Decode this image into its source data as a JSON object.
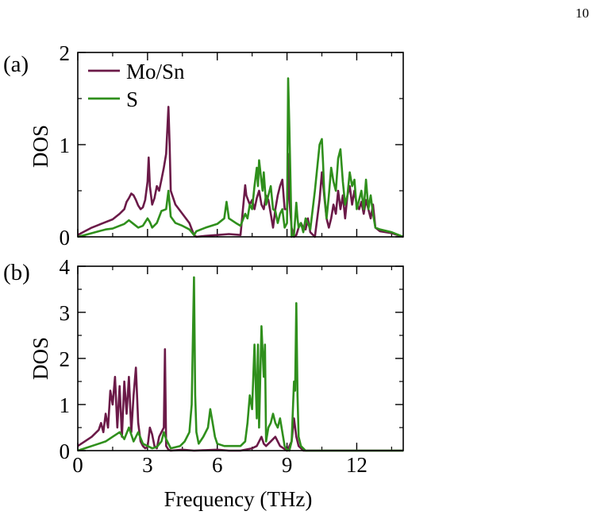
{
  "page_number": "10",
  "chart_data": [
    {
      "type": "line",
      "panel_label": "(a)",
      "ylabel": "DOS",
      "xlabel": "",
      "xlim": [
        0,
        14
      ],
      "ylim": [
        0,
        2
      ],
      "xticks": [
        0,
        3,
        6,
        9,
        12
      ],
      "xtick_labels_shown": false,
      "yticks": [
        0,
        1,
        2
      ],
      "ytick_labels": [
        "0",
        "1",
        "2"
      ],
      "legend": "top-left",
      "series": [
        {
          "name": "Mo/Sn",
          "color": "#6b1a48",
          "x": [
            0.0,
            0.3,
            0.6,
            0.9,
            1.2,
            1.5,
            1.8,
            2.0,
            2.1,
            2.2,
            2.3,
            2.4,
            2.5,
            2.6,
            2.7,
            2.8,
            2.9,
            3.0,
            3.05,
            3.1,
            3.2,
            3.3,
            3.4,
            3.5,
            3.6,
            3.7,
            3.8,
            3.9,
            3.95,
            4.0,
            4.2,
            4.5,
            4.8,
            5.0,
            5.1,
            5.5,
            6.0,
            6.5,
            7.0,
            7.2,
            7.25,
            7.4,
            7.5,
            7.6,
            7.7,
            7.8,
            7.9,
            8.0,
            8.1,
            8.2,
            8.3,
            8.4,
            8.5,
            8.6,
            8.7,
            8.8,
            8.9,
            9.0,
            9.05,
            9.1,
            9.2,
            9.3,
            9.4,
            9.5,
            9.6,
            9.7,
            9.8,
            9.9,
            10.0,
            10.2,
            10.4,
            10.5,
            10.6,
            10.7,
            10.8,
            10.9,
            11.0,
            11.1,
            11.2,
            11.3,
            11.4,
            11.5,
            11.6,
            11.7,
            11.8,
            11.9,
            12.0,
            12.1,
            12.2,
            12.3,
            12.4,
            12.5,
            12.6,
            12.7,
            12.8,
            13.0,
            13.5,
            14.0
          ],
          "y": [
            0.02,
            0.06,
            0.1,
            0.13,
            0.16,
            0.19,
            0.25,
            0.3,
            0.38,
            0.42,
            0.47,
            0.45,
            0.4,
            0.34,
            0.3,
            0.32,
            0.4,
            0.6,
            0.86,
            0.55,
            0.35,
            0.42,
            0.55,
            0.5,
            0.62,
            0.75,
            0.9,
            1.41,
            1.0,
            0.5,
            0.35,
            0.25,
            0.15,
            0.02,
            0.0,
            0.01,
            0.02,
            0.03,
            0.02,
            0.56,
            0.45,
            0.35,
            0.4,
            0.3,
            0.42,
            0.5,
            0.35,
            0.3,
            0.45,
            0.4,
            0.25,
            0.1,
            0.3,
            0.45,
            0.55,
            0.62,
            0.3,
            0.3,
            0.9,
            0.4,
            0.1,
            0.0,
            0.02,
            0.1,
            0.15,
            0.1,
            0.08,
            0.2,
            0.05,
            0.0,
            0.4,
            0.7,
            0.45,
            0.2,
            0.1,
            0.2,
            0.35,
            0.25,
            0.5,
            0.3,
            0.45,
            0.2,
            0.45,
            0.55,
            0.35,
            0.5,
            0.35,
            0.3,
            0.38,
            0.25,
            0.4,
            0.3,
            0.2,
            0.35,
            0.1,
            0.06,
            0.04,
            0.0
          ]
        },
        {
          "name": "S",
          "color": "#2f8f1c",
          "x": [
            0.0,
            0.3,
            0.6,
            0.9,
            1.2,
            1.5,
            1.8,
            2.0,
            2.2,
            2.4,
            2.6,
            2.8,
            3.0,
            3.1,
            3.2,
            3.4,
            3.6,
            3.8,
            3.9,
            4.0,
            4.2,
            4.5,
            4.8,
            5.0,
            5.1,
            5.5,
            6.0,
            6.3,
            6.4,
            6.5,
            6.8,
            7.0,
            7.2,
            7.3,
            7.4,
            7.5,
            7.6,
            7.7,
            7.75,
            7.8,
            7.9,
            7.95,
            8.0,
            8.1,
            8.2,
            8.3,
            8.4,
            8.5,
            8.6,
            8.7,
            8.8,
            8.9,
            9.0,
            9.05,
            9.1,
            9.15,
            9.2,
            9.3,
            9.4,
            9.45,
            9.5,
            9.6,
            9.7,
            9.8,
            9.9,
            10.0,
            10.2,
            10.4,
            10.5,
            10.55,
            10.6,
            10.7,
            10.8,
            10.9,
            11.0,
            11.1,
            11.2,
            11.3,
            11.4,
            11.5,
            11.6,
            11.7,
            11.8,
            11.9,
            12.0,
            12.1,
            12.2,
            12.3,
            12.4,
            12.5,
            12.6,
            12.7,
            12.8,
            13.0,
            13.5,
            14.0
          ],
          "y": [
            0.0,
            0.02,
            0.04,
            0.06,
            0.08,
            0.09,
            0.12,
            0.14,
            0.18,
            0.14,
            0.1,
            0.12,
            0.2,
            0.16,
            0.1,
            0.15,
            0.28,
            0.3,
            0.5,
            0.22,
            0.15,
            0.12,
            0.08,
            0.02,
            0.06,
            0.1,
            0.14,
            0.2,
            0.38,
            0.2,
            0.15,
            0.12,
            0.25,
            0.2,
            0.35,
            0.3,
            0.55,
            0.75,
            0.55,
            0.83,
            0.6,
            0.5,
            0.7,
            0.35,
            0.45,
            0.55,
            0.3,
            0.28,
            0.15,
            0.25,
            0.3,
            0.1,
            0.15,
            1.72,
            1.2,
            0.6,
            0.0,
            0.02,
            0.37,
            0.2,
            0.1,
            0.15,
            0.05,
            0.2,
            0.15,
            0.08,
            0.5,
            1.0,
            1.06,
            0.8,
            0.5,
            0.2,
            0.45,
            0.75,
            0.6,
            0.5,
            0.85,
            0.95,
            0.6,
            0.35,
            0.45,
            0.7,
            0.55,
            0.62,
            0.3,
            0.4,
            0.5,
            0.3,
            0.62,
            0.3,
            0.45,
            0.25,
            0.1,
            0.08,
            0.05,
            0.0
          ]
        }
      ]
    },
    {
      "type": "line",
      "panel_label": "(b)",
      "ylabel": "DOS",
      "xlabel": "Frequency (THz)",
      "xlim": [
        0,
        14
      ],
      "ylim": [
        0,
        4
      ],
      "xticks": [
        0,
        3,
        6,
        9,
        12
      ],
      "xtick_labels": [
        "0",
        "3",
        "6",
        "9",
        "12"
      ],
      "yticks": [
        0,
        1,
        2,
        3,
        4
      ],
      "ytick_labels": [
        "0",
        "1",
        "2",
        "3",
        "4"
      ],
      "series": [
        {
          "name": "Mo/Sn",
          "color": "#6b1a48",
          "x": [
            0.0,
            0.3,
            0.6,
            0.9,
            1.0,
            1.1,
            1.2,
            1.3,
            1.4,
            1.5,
            1.6,
            1.7,
            1.8,
            1.9,
            2.0,
            2.1,
            2.2,
            2.3,
            2.4,
            2.5,
            2.6,
            2.7,
            2.8,
            2.9,
            3.0,
            3.1,
            3.2,
            3.3,
            3.4,
            3.5,
            3.6,
            3.7,
            3.75,
            3.8,
            3.9,
            4.0,
            4.5,
            5.0,
            5.5,
            6.0,
            6.5,
            7.0,
            7.5,
            7.7,
            7.9,
            8.0,
            8.1,
            8.3,
            8.5,
            8.7,
            9.0,
            9.2,
            9.3,
            9.4,
            9.5,
            9.7,
            10.0,
            14.0
          ],
          "y": [
            0.1,
            0.2,
            0.3,
            0.45,
            0.6,
            0.4,
            0.8,
            0.5,
            1.3,
            1.0,
            1.6,
            0.5,
            1.4,
            0.3,
            1.5,
            0.8,
            1.6,
            0.4,
            1.2,
            1.8,
            0.6,
            0.2,
            0.1,
            0.05,
            0.08,
            0.5,
            0.35,
            0.1,
            0.05,
            0.3,
            0.4,
            0.5,
            2.2,
            0.1,
            0.02,
            0.0,
            0.02,
            0.0,
            0.01,
            0.02,
            0.0,
            0.0,
            0.05,
            0.1,
            0.3,
            0.15,
            0.1,
            0.2,
            0.3,
            0.1,
            0.0,
            0.2,
            0.7,
            0.3,
            0.1,
            0.0,
            0.0,
            0.0
          ]
        },
        {
          "name": "S",
          "color": "#2f8f1c",
          "x": [
            0.0,
            0.3,
            0.6,
            0.9,
            1.2,
            1.5,
            1.8,
            2.0,
            2.2,
            2.4,
            2.6,
            2.8,
            3.0,
            3.2,
            3.4,
            3.6,
            3.7,
            3.8,
            4.0,
            4.4,
            4.6,
            4.8,
            4.9,
            5.0,
            5.05,
            5.1,
            5.2,
            5.4,
            5.6,
            5.7,
            5.8,
            5.9,
            6.0,
            6.3,
            6.6,
            7.0,
            7.2,
            7.3,
            7.4,
            7.5,
            7.6,
            7.7,
            7.75,
            7.8,
            7.9,
            8.0,
            8.05,
            8.1,
            8.2,
            8.3,
            8.4,
            8.5,
            8.6,
            8.7,
            8.8,
            8.9,
            9.0,
            9.1,
            9.2,
            9.3,
            9.35,
            9.4,
            9.45,
            9.5,
            9.6,
            9.8,
            10.0,
            14.0
          ],
          "y": [
            0.0,
            0.05,
            0.1,
            0.15,
            0.2,
            0.3,
            0.4,
            0.25,
            0.5,
            0.2,
            0.4,
            0.15,
            0.1,
            0.05,
            0.08,
            0.2,
            0.4,
            0.25,
            0.05,
            0.1,
            0.2,
            0.4,
            1.0,
            3.76,
            1.2,
            0.4,
            0.15,
            0.3,
            0.5,
            0.9,
            0.6,
            0.3,
            0.15,
            0.1,
            0.1,
            0.1,
            0.2,
            0.6,
            1.2,
            0.9,
            2.3,
            0.7,
            2.3,
            0.5,
            2.7,
            1.6,
            2.3,
            0.2,
            0.5,
            0.6,
            0.8,
            0.6,
            0.5,
            0.7,
            0.4,
            0.1,
            0.02,
            0.0,
            0.2,
            1.5,
            1.3,
            3.2,
            1.2,
            0.3,
            0.1,
            0.0,
            0.0,
            0.0
          ]
        }
      ]
    }
  ]
}
